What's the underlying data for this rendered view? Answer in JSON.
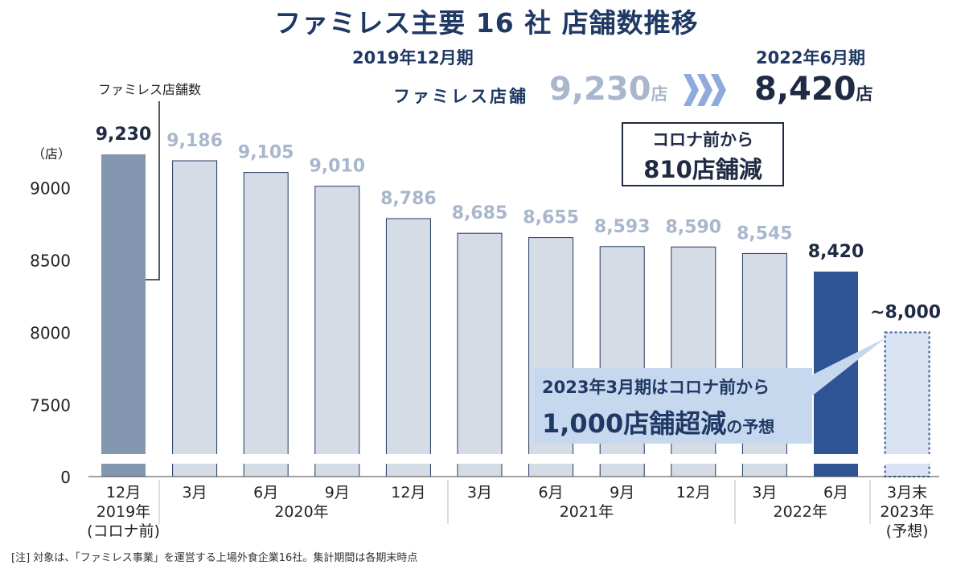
{
  "title": "ファミレス主要 16 社  店舗数推移",
  "header": {
    "period_before": "2019年12月期",
    "period_after": "2022年6月期",
    "label": "ファミレス店舗",
    "value_before": "9,230",
    "value_after": "8,420",
    "unit": "店"
  },
  "reduction_box": {
    "line1": "コロナ前から",
    "line2": "810店舗減"
  },
  "callout": {
    "line1": "2023年3月期はコロナ前から",
    "line2": "1,000店舗超減",
    "line2_suffix": "の予想"
  },
  "note": "[注] 対象は、「ファミレス事業」を運営する上場外食企業16社。集計期間は各期末時点",
  "chart_data": {
    "type": "bar",
    "legend_label": "ファミレス店舗数",
    "y_unit": "（店）",
    "y_ticks": [
      0,
      7500,
      8000,
      8500,
      9000
    ],
    "axis_break": true,
    "categories": [
      "12月",
      "3月",
      "6月",
      "9月",
      "12月",
      "3月",
      "6月",
      "9月",
      "12月",
      "3月",
      "6月",
      "3月末"
    ],
    "values": [
      9230,
      9186,
      9105,
      9010,
      8786,
      8685,
      8655,
      8593,
      8590,
      8545,
      8420,
      8000
    ],
    "value_labels": [
      "9,230",
      "9,186",
      "9,105",
      "9,010",
      "8,786",
      "8,685",
      "8,655",
      "8,593",
      "8,590",
      "8,545",
      "8,420",
      "~8,000"
    ],
    "styles": [
      "highlight-old",
      "normal",
      "normal",
      "normal",
      "normal",
      "normal",
      "normal",
      "normal",
      "normal",
      "normal",
      "highlight-new",
      "forecast"
    ],
    "groups": [
      {
        "label": "2019年\n(コロナ前)",
        "from": 0,
        "to": 0
      },
      {
        "label": "2020年",
        "from": 1,
        "to": 4
      },
      {
        "label": "2021年",
        "from": 5,
        "to": 8
      },
      {
        "label": "2022年",
        "from": 9,
        "to": 10
      },
      {
        "label": "2023年\n(予想)",
        "from": 11,
        "to": 11
      }
    ],
    "colors": {
      "normal": "#d6dce6",
      "highlight-old": "#8497b0",
      "highlight-new": "#2f5496",
      "forecast": "#dae3f3",
      "label_old": "#a9b7cc",
      "label_dark": "#1f2a44"
    }
  }
}
